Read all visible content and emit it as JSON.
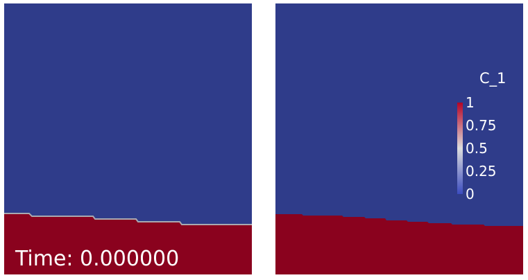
{
  "colors": {
    "background_field": "#2f3c8a",
    "fluid_field": "#8a021e",
    "interface_line": "#a9a9b0",
    "text": "#ffffff",
    "colormap_low": "#3b4cc0",
    "colormap_mid": "#dddddd",
    "colormap_high": "#b40426"
  },
  "left_view": {
    "time_label": "Time: 0.000000"
  },
  "right_view": {
    "legend": {
      "title": "C_1",
      "ticks": [
        {
          "value": 1,
          "label": "1"
        },
        {
          "value": 0.75,
          "label": "0.75"
        },
        {
          "value": 0.5,
          "label": "0.5"
        },
        {
          "value": 0.25,
          "label": "0.25"
        },
        {
          "value": 0,
          "label": "0"
        }
      ]
    }
  }
}
